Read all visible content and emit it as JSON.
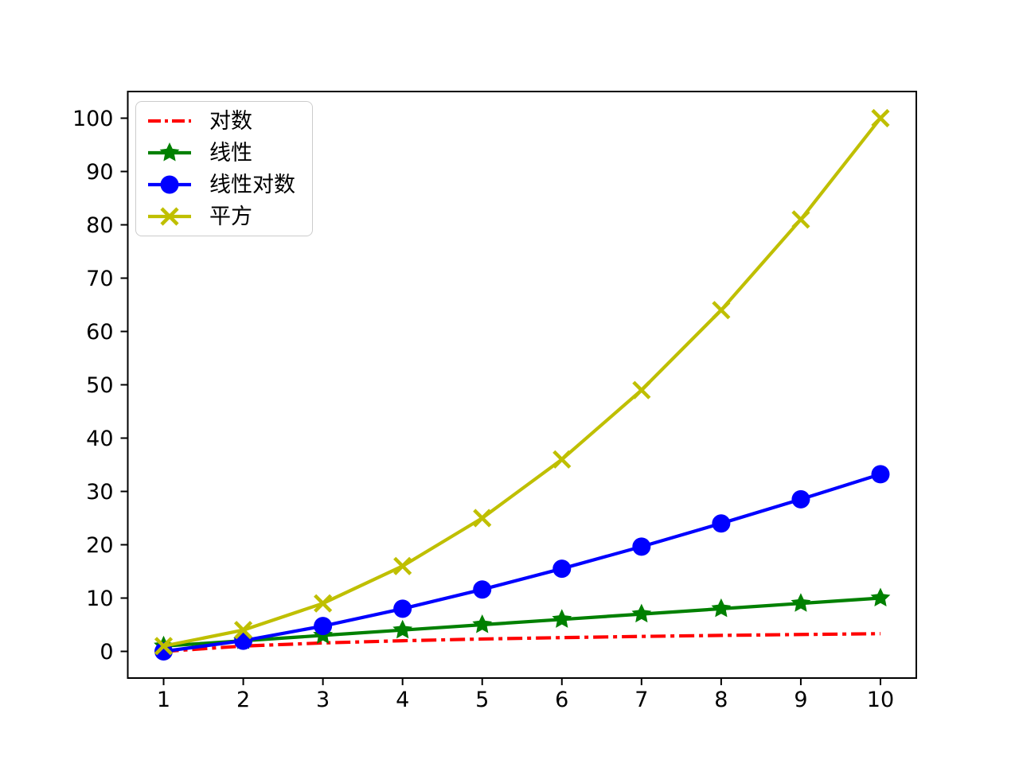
{
  "chart_data": {
    "type": "line",
    "title": "",
    "xlabel": "",
    "ylabel": "",
    "grid": false,
    "legend_position": "upper left",
    "axis_color": "#000000",
    "background_color": "#ffffff",
    "xlim": [
      0.55,
      10.45
    ],
    "ylim": [
      -5,
      105
    ],
    "xticks": [
      1,
      2,
      3,
      4,
      5,
      6,
      7,
      8,
      9,
      10
    ],
    "yticks": [
      0,
      10,
      20,
      30,
      40,
      50,
      60,
      70,
      80,
      90,
      100
    ],
    "x": [
      1,
      2,
      3,
      4,
      5,
      6,
      7,
      8,
      9,
      10
    ],
    "series": [
      {
        "name": "对数",
        "formula": "log2(x)",
        "values": [
          0,
          1,
          1.585,
          2,
          2.322,
          2.585,
          2.807,
          3,
          3.17,
          3.322
        ],
        "color": "#ff0000",
        "linestyle": "dashdot",
        "marker": "none"
      },
      {
        "name": "线性",
        "formula": "x",
        "values": [
          1,
          2,
          3,
          4,
          5,
          6,
          7,
          8,
          9,
          10
        ],
        "color": "#008000",
        "linestyle": "solid",
        "marker": "star"
      },
      {
        "name": "线性对数",
        "formula": "x*log2(x)",
        "values": [
          0,
          2,
          4.755,
          8,
          11.61,
          15.51,
          19.651,
          24,
          28.529,
          33.219
        ],
        "color": "#0000ff",
        "linestyle": "solid",
        "marker": "circle"
      },
      {
        "name": "平方",
        "formula": "x^2",
        "values": [
          1,
          4,
          9,
          16,
          25,
          36,
          49,
          64,
          81,
          100
        ],
        "color": "#bfbf00",
        "linestyle": "solid",
        "marker": "x"
      }
    ]
  }
}
